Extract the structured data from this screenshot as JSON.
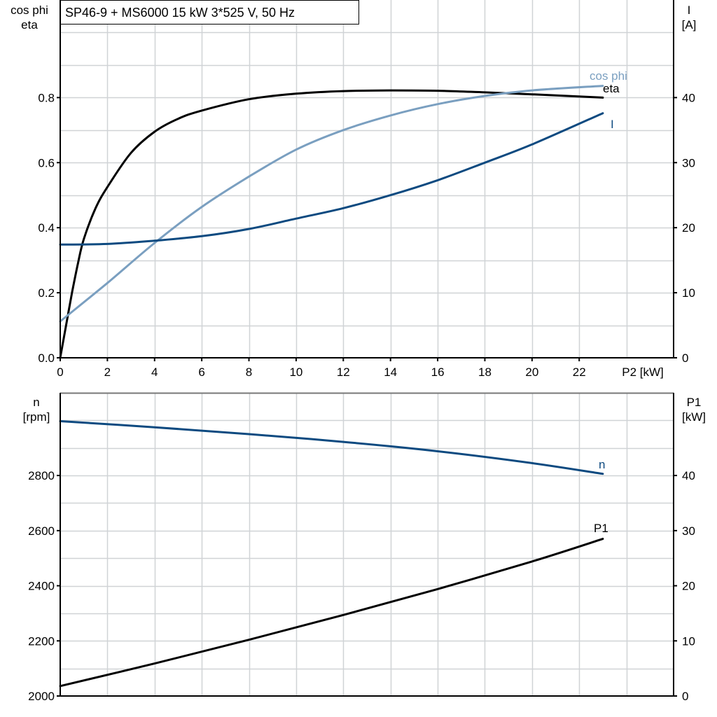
{
  "title": "SP46-9 + MS6000   15 kW   3*525 V, 50 Hz",
  "chart_data": [
    {
      "type": "line",
      "xlabel": "P2 [kW]",
      "ylabel_left": [
        "cos phi",
        "eta"
      ],
      "ylabel_right": [
        "I",
        "[A]"
      ],
      "xlim": [
        0,
        26
      ],
      "ylim_left": [
        0,
        1.1
      ],
      "ylim_right": [
        0,
        55
      ],
      "x_ticks": [
        0,
        2,
        4,
        6,
        8,
        10,
        12,
        14,
        16,
        18,
        20,
        22
      ],
      "y_ticks_left": [
        "0.0",
        "0.2",
        "0.4",
        "0.6",
        "0.8"
      ],
      "y_ticks_right": [
        "0",
        "10",
        "20",
        "30",
        "40"
      ],
      "grid": true,
      "series": [
        {
          "name": "eta",
          "axis": "left",
          "color": "#000000",
          "x": [
            0,
            0.25,
            0.5,
            0.75,
            1,
            1.5,
            2,
            3,
            4,
            5,
            6,
            8,
            10,
            12,
            14,
            16,
            18,
            20,
            23
          ],
          "y": [
            0,
            0.1,
            0.2,
            0.29,
            0.365,
            0.46,
            0.525,
            0.63,
            0.695,
            0.735,
            0.76,
            0.795,
            0.812,
            0.82,
            0.822,
            0.821,
            0.816,
            0.81,
            0.8
          ]
        },
        {
          "name": "cos phi",
          "axis": "left",
          "color": "#7a9fc0",
          "x": [
            0,
            2,
            4,
            6,
            8,
            10,
            12,
            14,
            16,
            18,
            20,
            23
          ],
          "y": [
            0.112,
            0.23,
            0.353,
            0.464,
            0.557,
            0.64,
            0.7,
            0.745,
            0.78,
            0.805,
            0.822,
            0.836
          ]
        },
        {
          "name": "I",
          "axis": "right",
          "color": "#0d4a80",
          "x": [
            0,
            2,
            4,
            6,
            8,
            10,
            12,
            14,
            16,
            18,
            20,
            23
          ],
          "y": [
            17.4,
            17.5,
            18.0,
            18.7,
            19.8,
            21.4,
            23.0,
            25.0,
            27.3,
            30.0,
            32.8,
            37.6
          ]
        }
      ]
    },
    {
      "type": "line",
      "xlabel": "",
      "ylabel_left": [
        "n",
        "[rpm]"
      ],
      "ylabel_right": [
        "P1",
        "[kW]"
      ],
      "xlim": [
        0,
        26
      ],
      "ylim_left": [
        2000,
        3100
      ],
      "ylim_right": [
        0,
        55
      ],
      "y_ticks_left": [
        "2000",
        "2200",
        "2400",
        "2600",
        "2800"
      ],
      "y_ticks_right": [
        "0",
        "10",
        "20",
        "30",
        "40"
      ],
      "grid": true,
      "series": [
        {
          "name": "n",
          "axis": "left",
          "color": "#0d4a80",
          "x": [
            0,
            4,
            8,
            12,
            16,
            20,
            23
          ],
          "y": [
            2997,
            2975,
            2950,
            2922,
            2888,
            2845,
            2806
          ]
        },
        {
          "name": "P1",
          "axis": "right",
          "color": "#000000",
          "x": [
            0,
            4,
            8,
            12,
            16,
            20,
            23
          ],
          "y": [
            1.8,
            5.9,
            10.2,
            14.7,
            19.4,
            24.4,
            28.5
          ]
        }
      ]
    }
  ]
}
